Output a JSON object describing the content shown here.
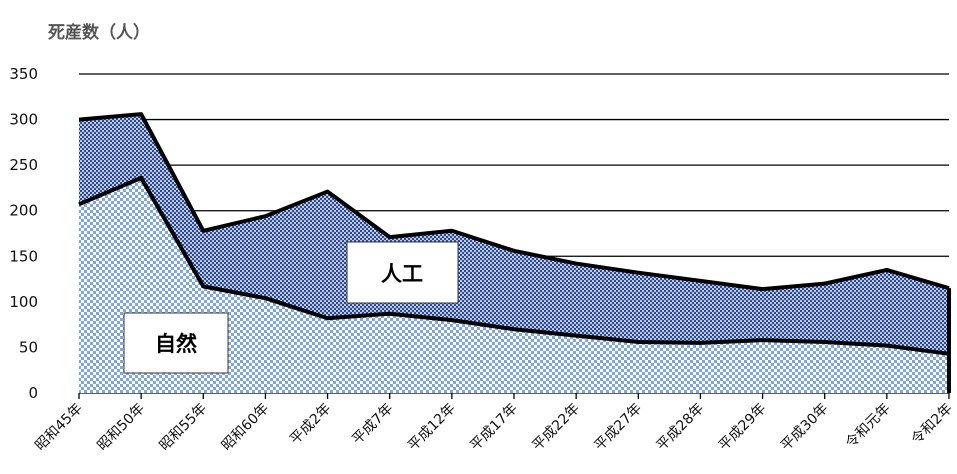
{
  "chart_data": {
    "type": "area",
    "stacked": true,
    "ylabel": "死産数（人）",
    "xlabel": "",
    "title": "",
    "ylim": [
      0,
      350
    ],
    "yticks": [
      0,
      50,
      100,
      150,
      200,
      250,
      300,
      350
    ],
    "grid": true,
    "categories": [
      "昭和45年",
      "昭和50年",
      "昭和55年",
      "昭和60年",
      "平成2年",
      "平成7年",
      "平成12年",
      "平成17年",
      "平成22年",
      "平成27年",
      "平成28年",
      "平成29年",
      "平成30年",
      "令和元年",
      "令和2年"
    ],
    "series": [
      {
        "name": "自然",
        "values": [
          207,
          236,
          117,
          104,
          82,
          87,
          80,
          70,
          63,
          56,
          55,
          58,
          56,
          52,
          43
        ],
        "color": "#7ea6e0"
      },
      {
        "name": "人工",
        "values": [
          93,
          70,
          61,
          90,
          139,
          84,
          98,
          86,
          79,
          76,
          68,
          56,
          64,
          83,
          72
        ],
        "color": "#2e4a8c"
      }
    ]
  }
}
